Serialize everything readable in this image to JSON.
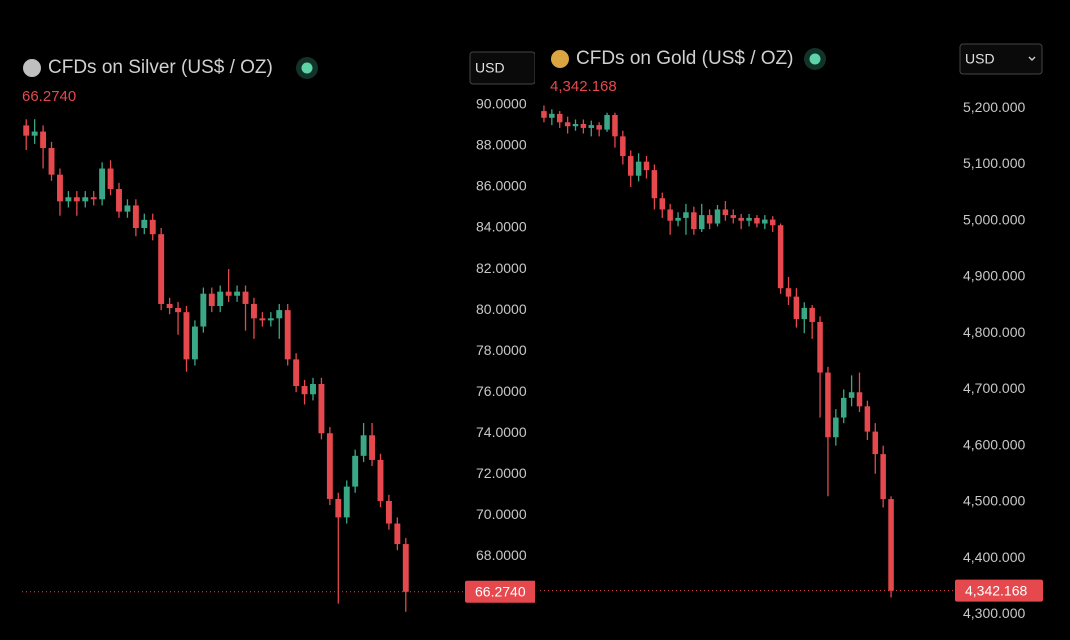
{
  "chart_data": [
    {
      "type": "candlestick",
      "title": "CFDs on Silver (US$ / OZ)",
      "currency": "USD",
      "last": {
        "value": 66.274,
        "label": "66.2740"
      },
      "up_color": "#3aa887",
      "down_color": "#e5484d",
      "ylim": [
        64.9,
        91.7
      ],
      "yticks": [
        {
          "value": 68,
          "label": "68.0000"
        },
        {
          "value": 70,
          "label": "70.0000"
        },
        {
          "value": 72,
          "label": "72.0000"
        },
        {
          "value": 74,
          "label": "74.0000"
        },
        {
          "value": 76,
          "label": "76.0000"
        },
        {
          "value": 78,
          "label": "78.0000"
        },
        {
          "value": 80,
          "label": "80.0000"
        },
        {
          "value": 82,
          "label": "82.0000"
        },
        {
          "value": 84,
          "label": "84.0000"
        },
        {
          "value": 86,
          "label": "86.0000"
        },
        {
          "value": 88,
          "label": "88.0000"
        },
        {
          "value": 90,
          "label": "90.0000"
        }
      ],
      "open": [
        89.0,
        88.5,
        88.7,
        87.9,
        86.6,
        85.3,
        85.5,
        85.3,
        85.5,
        85.4,
        86.9,
        85.9,
        84.8,
        85.1,
        84.0,
        84.4,
        83.7,
        80.3,
        80.1,
        79.9,
        77.6,
        79.2,
        80.8,
        80.2,
        80.9,
        80.7,
        80.9,
        80.3,
        79.6,
        79.5,
        79.6,
        80.0,
        77.6,
        76.3,
        75.9,
        76.4,
        74.0,
        70.8,
        69.9,
        71.4,
        72.9,
        73.9,
        72.7,
        70.7,
        69.6,
        68.6
      ],
      "high": [
        89.3,
        89.3,
        89.0,
        88.2,
        86.9,
        85.8,
        85.8,
        85.8,
        85.8,
        87.2,
        87.3,
        86.2,
        85.4,
        85.4,
        84.7,
        84.7,
        84.0,
        80.6,
        80.4,
        80.2,
        79.5,
        81.1,
        81.1,
        81.2,
        82.0,
        81.2,
        81.2,
        80.6,
        79.9,
        79.9,
        80.3,
        80.3,
        77.9,
        76.6,
        76.7,
        76.7,
        74.3,
        71.1,
        71.7,
        73.2,
        74.5,
        74.5,
        73.0,
        71.0,
        69.9,
        68.9
      ],
      "low": [
        87.8,
        88.1,
        86.9,
        86.3,
        84.6,
        85.0,
        84.6,
        85.0,
        85.1,
        85.1,
        85.6,
        84.5,
        84.5,
        83.6,
        83.7,
        83.4,
        80.0,
        79.8,
        78.8,
        77.0,
        77.3,
        78.9,
        79.9,
        79.9,
        80.4,
        80.4,
        79.0,
        78.6,
        79.2,
        79.2,
        78.6,
        77.3,
        76.0,
        75.4,
        75.6,
        73.7,
        70.5,
        65.7,
        69.6,
        71.1,
        72.6,
        72.4,
        70.4,
        69.3,
        68.3,
        65.3
      ],
      "close": [
        88.5,
        88.7,
        87.9,
        86.6,
        85.3,
        85.5,
        85.3,
        85.5,
        85.4,
        86.9,
        85.9,
        84.8,
        85.1,
        84.0,
        84.4,
        83.7,
        80.3,
        80.1,
        79.9,
        77.6,
        79.2,
        80.8,
        80.2,
        80.9,
        80.7,
        80.9,
        80.3,
        79.6,
        79.5,
        79.6,
        80.0,
        77.6,
        76.3,
        75.9,
        76.4,
        74.0,
        70.8,
        69.9,
        71.4,
        72.9,
        73.9,
        72.7,
        70.7,
        69.6,
        68.6,
        66.274
      ]
    },
    {
      "type": "candlestick",
      "title": "CFDs on Gold (US$ / OZ)",
      "currency": "USD",
      "last": {
        "value": 4342.168,
        "label": "4,342.168"
      },
      "up_color": "#3aa887",
      "down_color": "#e5484d",
      "ylim": [
        4290,
        5268
      ],
      "yticks": [
        {
          "value": 4300,
          "label": "4,300.000"
        },
        {
          "value": 4400,
          "label": "4,400.000"
        },
        {
          "value": 4500,
          "label": "4,500.000"
        },
        {
          "value": 4600,
          "label": "4,600.000"
        },
        {
          "value": 4700,
          "label": "4,700.000"
        },
        {
          "value": 4800,
          "label": "4,800.000"
        },
        {
          "value": 4900,
          "label": "4,900.000"
        },
        {
          "value": 5000,
          "label": "5,000.000"
        },
        {
          "value": 5100,
          "label": "5,100.000"
        },
        {
          "value": 5200,
          "label": "5,200.000"
        }
      ],
      "open": [
        5195,
        5183,
        5190,
        5175,
        5168,
        5172,
        5165,
        5170,
        5162,
        5188,
        5150,
        5115,
        5080,
        5105,
        5090,
        5040,
        5020,
        5000,
        5005,
        5015,
        4985,
        5010,
        4995,
        5020,
        5010,
        5005,
        5000,
        5005,
        4995,
        5002,
        4992,
        4880,
        4865,
        4825,
        4845,
        4820,
        4730,
        4615,
        4650,
        4685,
        4695,
        4670,
        4625,
        4585,
        4505
      ],
      "high": [
        5205,
        5198,
        5195,
        5185,
        5180,
        5180,
        5178,
        5175,
        5192,
        5192,
        5160,
        5125,
        5120,
        5115,
        5100,
        5050,
        5030,
        5015,
        5030,
        5025,
        5030,
        5020,
        5028,
        5035,
        5020,
        5012,
        5012,
        5010,
        5010,
        5008,
        4995,
        4900,
        4880,
        4855,
        4850,
        4830,
        4740,
        4665,
        4700,
        4725,
        4730,
        4680,
        4640,
        4600,
        4510
      ],
      "low": [
        5175,
        5170,
        5165,
        5155,
        5160,
        5155,
        5150,
        5150,
        5158,
        5130,
        5100,
        5060,
        5070,
        5075,
        5020,
        5005,
        4975,
        4990,
        4975,
        4975,
        4980,
        4985,
        4990,
        5000,
        4995,
        4985,
        4990,
        4988,
        4985,
        4980,
        4870,
        4850,
        4810,
        4800,
        4790,
        4650,
        4510,
        4600,
        4640,
        4670,
        4660,
        4610,
        4550,
        4490,
        4330
      ],
      "close": [
        5183,
        5190,
        5175,
        5168,
        5172,
        5165,
        5170,
        5162,
        5188,
        5150,
        5115,
        5080,
        5105,
        5090,
        5040,
        5020,
        5000,
        5005,
        5015,
        4985,
        5010,
        4995,
        5020,
        5010,
        5005,
        5000,
        5005,
        4995,
        5002,
        4992,
        4880,
        4865,
        4825,
        4845,
        4820,
        4730,
        4615,
        4650,
        4685,
        4695,
        4670,
        4625,
        4585,
        4505,
        4342.168
      ]
    }
  ]
}
